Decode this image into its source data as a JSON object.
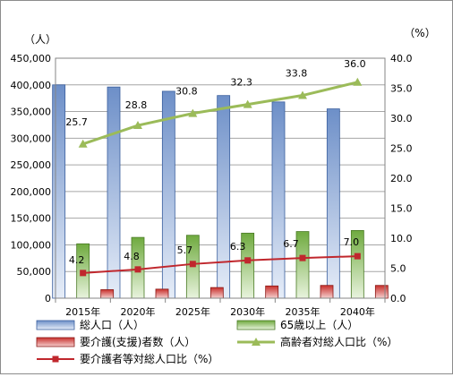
{
  "chart_data": {
    "type": "bar",
    "categories": [
      "2015年",
      "2020年",
      "2025年",
      "2030年",
      "2035年",
      "2040年"
    ],
    "y_left_label": "（人）",
    "y_right_label": "（%）",
    "ylim_left": [
      0,
      450000
    ],
    "ylim_right": [
      0,
      40
    ],
    "y_left_ticks": [
      "0",
      "50,000",
      "100,000",
      "150,000",
      "200,000",
      "250,000",
      "300,000",
      "350,000",
      "400,000",
      "450,000"
    ],
    "y_right_ticks": [
      "0.0",
      "5.0",
      "10.0",
      "15.0",
      "20.0",
      "25.0",
      "30.0",
      "35.0",
      "40.0"
    ],
    "bar_series": [
      {
        "name": "総人口（人）",
        "axis": "left",
        "values": [
          400000,
          396000,
          388000,
          380000,
          368000,
          355000
        ],
        "color_top": "#6d8fc8",
        "color_bottom": "#e6edf8",
        "stroke": "#3a5f9e"
      },
      {
        "name": "65歳以上（人）",
        "axis": "left",
        "values": [
          102000,
          114000,
          118000,
          122000,
          125000,
          127000
        ],
        "color_top": "#6faa3f",
        "color_bottom": "#e8f3dd",
        "stroke": "#4a7a25"
      },
      {
        "name": "要介護(支援)者数（人）",
        "axis": "left",
        "values": [
          16000,
          17000,
          20000,
          23000,
          24000,
          24000
        ],
        "color_top": "#c8302c",
        "color_bottom": "#f5d0cf",
        "stroke": "#8b1a17"
      }
    ],
    "line_series": [
      {
        "name": "高齢者対総人口比（%）",
        "axis": "right",
        "values": [
          25.7,
          28.8,
          30.8,
          32.3,
          33.8,
          36.0
        ],
        "labels": [
          "25.7",
          "28.8",
          "30.8",
          "32.3",
          "33.8",
          "36.0"
        ],
        "color": "#9bbb59",
        "marker": "triangle"
      },
      {
        "name": "要介護者等対総人口比（%）",
        "axis": "right",
        "values": [
          4.2,
          4.8,
          5.7,
          6.3,
          6.7,
          7.0
        ],
        "labels": [
          "4.2",
          "4.8",
          "5.7",
          "6.3",
          "6.7",
          "7.0"
        ],
        "color": "#c0272d",
        "marker": "square"
      }
    ],
    "grid": true,
    "legend_position": "bottom"
  }
}
